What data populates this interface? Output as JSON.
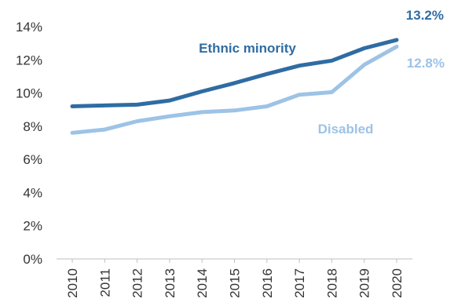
{
  "chart_data": {
    "type": "line",
    "x": [
      "2010",
      "2011",
      "2012",
      "2013",
      "2014",
      "2015",
      "2016",
      "2017",
      "2018",
      "2019",
      "2020"
    ],
    "series": [
      {
        "name": "Ethnic minority",
        "values": [
          9.2,
          9.25,
          9.3,
          9.55,
          10.1,
          10.6,
          11.15,
          11.65,
          11.95,
          12.7,
          13.2
        ],
        "color": "#2f6ca3",
        "end_label": "13.2%"
      },
      {
        "name": "Disabled",
        "values": [
          7.6,
          7.8,
          8.3,
          8.6,
          8.85,
          8.95,
          9.2,
          9.9,
          10.05,
          11.7,
          12.8
        ],
        "color": "#9dc3e6",
        "end_label": "12.8%"
      }
    ],
    "ylim": [
      0,
      14
    ],
    "y_ticks": [
      0,
      2,
      4,
      6,
      8,
      10,
      12,
      14
    ],
    "y_tick_labels": [
      "0%",
      "2%",
      "4%",
      "6%",
      "8%",
      "10%",
      "12%",
      "14%"
    ],
    "grid": false,
    "legend": "inline labels"
  }
}
